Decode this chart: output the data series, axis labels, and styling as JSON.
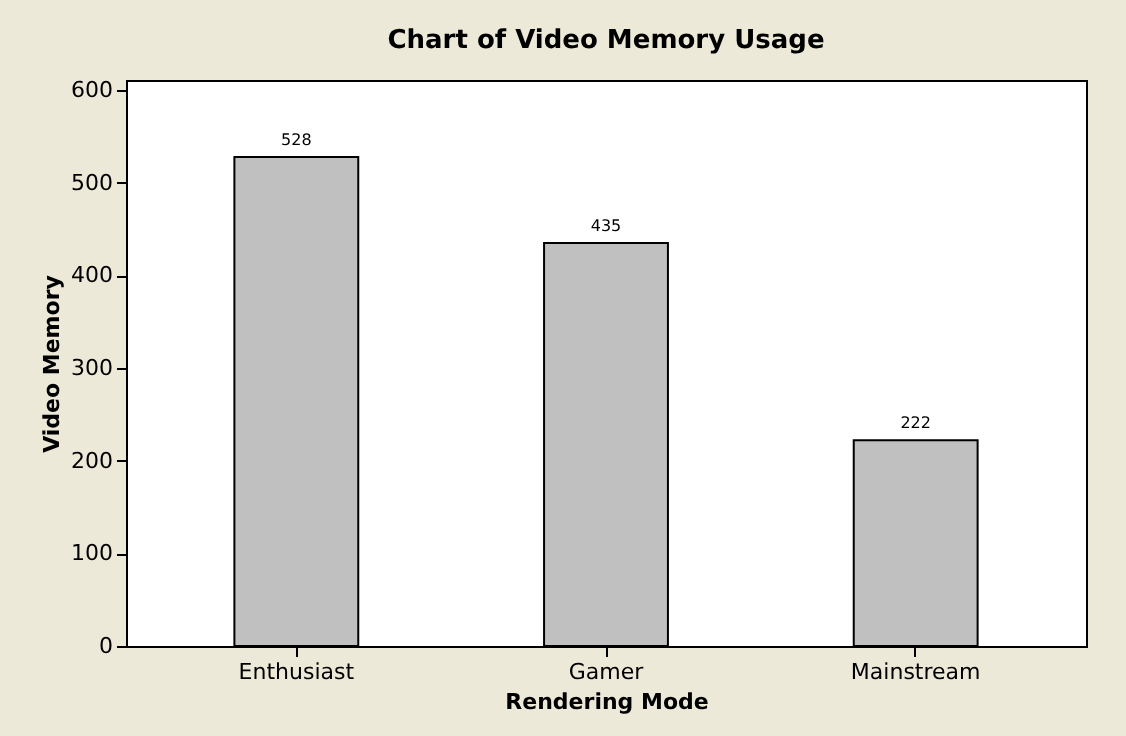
{
  "chart_data": {
    "type": "bar",
    "title": "Chart of Video Memory Usage",
    "xlabel": "Rendering Mode",
    "ylabel": "Video Memory",
    "categories": [
      "Enthusiast",
      "Gamer",
      "Mainstream"
    ],
    "values": [
      528,
      435,
      222
    ],
    "color": "#c0c0c0",
    "ylim": [
      0,
      611
    ],
    "yticks": [
      0,
      100,
      200,
      300,
      400,
      500,
      600
    ],
    "data_labels": true
  }
}
